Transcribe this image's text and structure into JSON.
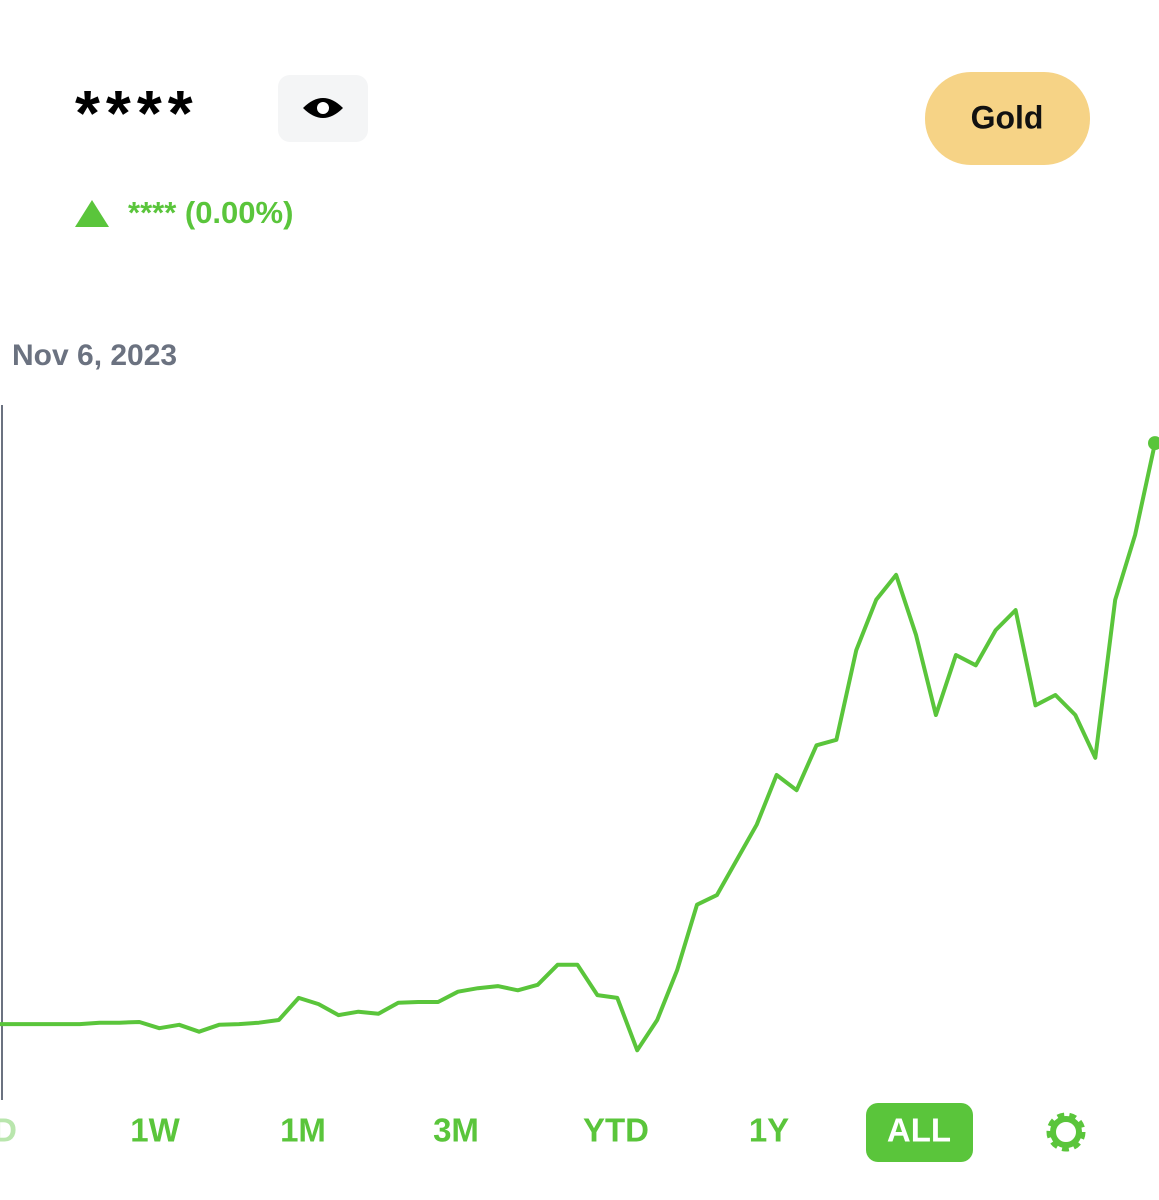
{
  "header": {
    "balance": "****",
    "change": "**** (0.00%)",
    "badge": "Gold"
  },
  "chart_data": {
    "type": "line",
    "date": "Nov 6, 2023",
    "color": "#5ac53b",
    "ylim": [
      0,
      100
    ],
    "values": [
      11.0,
      11.0,
      11.0,
      11.0,
      11.0,
      11.2,
      11.2,
      11.3,
      10.4,
      10.9,
      9.9,
      10.9,
      11.0,
      11.2,
      11.6,
      14.8,
      13.9,
      12.3,
      12.8,
      12.5,
      14.1,
      14.2,
      14.2,
      15.7,
      16.2,
      16.5,
      15.9,
      16.7,
      19.6,
      19.6,
      15.2,
      14.8,
      7.2,
      11.6,
      18.8,
      28.3,
      29.7,
      34.8,
      39.9,
      47.1,
      44.9,
      51.4,
      52.2,
      65.2,
      72.5,
      76.1,
      67.4,
      55.8,
      64.5,
      63.0,
      68.1,
      71.0,
      57.2,
      58.7,
      55.8,
      49.6,
      72.5,
      81.9,
      95.2
    ]
  },
  "ranges": [
    "D",
    "1W",
    "1M",
    "3M",
    "YTD",
    "1Y",
    "ALL"
  ]
}
